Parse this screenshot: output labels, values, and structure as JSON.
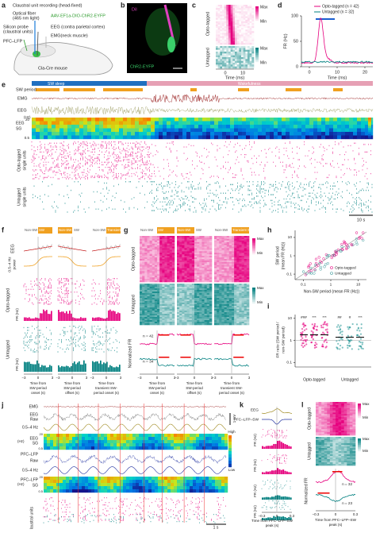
{
  "panels": {
    "a": {
      "letter": "a",
      "title": "Claustral unit recording (head-fixed)",
      "fiber": [
        "Optical fiber",
        "(465 nm light)"
      ],
      "probe": [
        "Silicon probe",
        "(claustral units)"
      ],
      "virus": "AAV-EF1a-DIO-ChR2-EYFP",
      "eeg": "EEG (contra parietal cortex)",
      "emg": "EMG(neck muscle)",
      "lfp": "PFC–LFP",
      "mouse": "Cla-Cre mouse"
    },
    "b": {
      "letter": "b",
      "dii": "DiI",
      "chr2": "ChR2-EYFP"
    },
    "c": {
      "letter": "c",
      "groups": [
        "Opto-tagged",
        "Untagged"
      ],
      "scale": [
        "Max",
        "Min",
        "Max",
        "Min"
      ],
      "xticks": [
        "0",
        "10"
      ],
      "xlabel": "Time (ms)"
    },
    "d": {
      "letter": "d",
      "legend": [
        "Opto-tagged (n = 42)",
        "Untagged (n = 32)"
      ],
      "ylabel": "FR (Hz)",
      "yticks": [
        "100",
        "50",
        "0"
      ],
      "xticks": [
        "0",
        "10",
        "20"
      ],
      "xlabel": "Time (ms)"
    },
    "e": {
      "letter": "e",
      "states": [
        "SW sleep",
        "Wakefulness"
      ],
      "rows": [
        "SW period",
        "EMG",
        "EEG"
      ],
      "sg": [
        "EEG",
        "SG",
        "(Hz)",
        "20",
        "0.5"
      ],
      "units": [
        "Opto-tagged",
        "single units",
        "Untagged",
        "single units"
      ],
      "scale": "10 s"
    },
    "f": {
      "letter": "f",
      "headers": [
        "Non-SW",
        "SW",
        "SW",
        "Non-SW",
        "Non-SW",
        "Transient SW"
      ],
      "rows": [
        "EEG",
        "0.5–4 Hz",
        "power",
        "Opto-tagged",
        "FR (Hz)",
        "Untagged",
        "FR (Hz)"
      ],
      "xticks": [
        "−3",
        "0",
        "3"
      ],
      "xlabels": [
        [
          "Time from",
          "SW-period",
          "onset (s)"
        ],
        [
          "Time from",
          "SW-period",
          "offset (s)"
        ],
        [
          "Time from",
          "transient SW-",
          "period onset (s)"
        ]
      ]
    },
    "g": {
      "letter": "g",
      "headers": [
        "Non-SW",
        "SW",
        "SW",
        "Non-SW",
        "Non-SW",
        "Transient SW"
      ],
      "groups": [
        "Opto-tagged",
        "Untagged"
      ],
      "scale": [
        "Max",
        "Min",
        "Max",
        "Min"
      ],
      "ylabel": "Normalized FR",
      "n": [
        "n = 42",
        "n = 34"
      ],
      "xticks": [
        "−3",
        "0",
        "3"
      ],
      "xlabels": [
        [
          "Time from",
          "SW-period",
          "onset (s)"
        ],
        [
          "Time from",
          "SW-period",
          "offset (s)"
        ],
        [
          "Time from",
          "transient SW-",
          "period onset (s)"
        ]
      ]
    },
    "h": {
      "letter": "h",
      "ylabel": [
        "SW period",
        "(mean FR (Hz))"
      ],
      "xlabel": "Non-SW period (mean FR (Hz))",
      "ticks": [
        "0.1",
        "1",
        "10"
      ],
      "legend": [
        "Opto-tagged",
        "Untagged"
      ]
    },
    "i": {
      "letter": "i",
      "ylabel": [
        "FR ratio (SW period /",
        "non-SW period)"
      ],
      "yticks": [
        "10",
        "1",
        "0.1"
      ],
      "groups": [
        "Opto-tagged",
        "Untagged"
      ],
      "stats": [
        "###",
        "***",
        "***",
        "##",
        "#",
        "***"
      ]
    },
    "j": {
      "letter": "j",
      "rows": [
        "EMG",
        "EEG",
        "Raw",
        "0.5–4 Hz",
        "EEG",
        "SG",
        "(Hz)",
        "PFC–LFP",
        "Raw",
        "0.5–4 Hz",
        "PFC–LFP",
        "SG",
        "(Hz)",
        "Claustral units"
      ],
      "sgticks": [
        "20",
        "0.5",
        "20",
        "0.5"
      ],
      "cbar": [
        "High",
        "Low"
      ],
      "scale": [
        "1 s",
        "1 mV"
      ]
    },
    "k": {
      "letter": "k",
      "rows": [
        "EEG",
        "PFC–LFP–SW"
      ],
      "ylabels": [
        "FR (Hz)",
        "FR (Hz)",
        "FR (Hz)",
        "FR (Hz)"
      ],
      "xticks": [
        "−0.3",
        "0",
        "0.3"
      ],
      "xlabel": [
        "Time from PFC–LFP–SW",
        "peak (s)"
      ]
    },
    "l": {
      "letter": "l",
      "groups": [
        "Opto-tagged",
        "Untagged"
      ],
      "scale": [
        "Max",
        "Min",
        "Max",
        "Min"
      ],
      "ylabel": "Normalized FR",
      "n": [
        "n = 32",
        "n = 23"
      ],
      "xticks": [
        "−0.3",
        "0",
        "0.3"
      ],
      "xlabel": [
        "Time from PFC–LFP–SW",
        "peak (s)"
      ]
    }
  }
}
